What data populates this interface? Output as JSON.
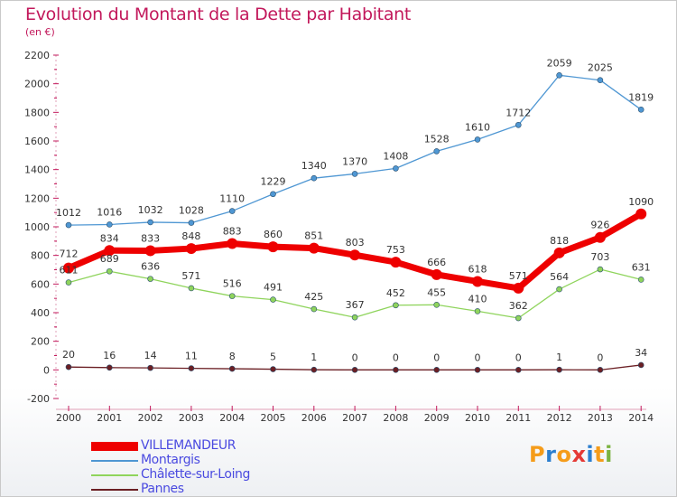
{
  "header": {
    "title": "Evolution du Montant de la Dette par Habitant",
    "subtitle": "(en €)"
  },
  "logo": {
    "letters": [
      "P",
      "r",
      "o",
      "x",
      "i",
      "t",
      "i"
    ],
    "colors": [
      "#f59c1a",
      "#2c7fcf",
      "#f59c1a",
      "#e53935",
      "#2c7fcf",
      "#f59c1a",
      "#7cb342"
    ]
  },
  "chart_data": {
    "type": "line",
    "title": "Evolution du Montant de la Dette par Habitant",
    "subtitle": "(en €)",
    "xlabel": "",
    "ylabel": "",
    "x": [
      "2000",
      "2001",
      "2002",
      "2003",
      "2004",
      "2005",
      "2006",
      "2007",
      "2008",
      "2009",
      "2010",
      "2011",
      "2012",
      "2013",
      "2014"
    ],
    "ylim": [
      -200,
      2200
    ],
    "yticks": [
      -200,
      0,
      200,
      400,
      600,
      800,
      1000,
      1200,
      1400,
      1600,
      1800,
      2000,
      2200
    ],
    "grid": false,
    "legend_position": "bottom-left",
    "series": [
      {
        "name": "VILLEMANDEUR",
        "color": "#ee0000",
        "values": [
          712,
          834,
          833,
          848,
          883,
          860,
          851,
          803,
          753,
          666,
          618,
          571,
          818,
          926,
          1090
        ]
      },
      {
        "name": "Montargis",
        "color": "#4f97d3",
        "values": [
          1012,
          1016,
          1032,
          1028,
          1110,
          1229,
          1340,
          1370,
          1408,
          1528,
          1610,
          1712,
          2059,
          2025,
          1819
        ]
      },
      {
        "name": "Châlette-sur-Loing",
        "color": "#8fd45c",
        "values": [
          611,
          689,
          636,
          571,
          516,
          491,
          425,
          367,
          452,
          455,
          410,
          362,
          564,
          703,
          631
        ]
      },
      {
        "name": "Pannes",
        "color": "#6b1f24",
        "values": [
          20,
          16,
          14,
          11,
          8,
          5,
          1,
          0,
          0,
          0,
          0,
          0,
          1,
          0,
          34
        ]
      }
    ]
  }
}
